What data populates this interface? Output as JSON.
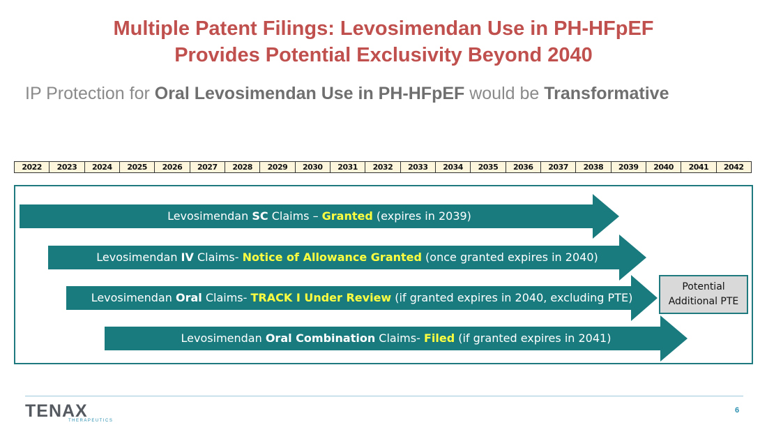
{
  "title_line1": "Multiple Patent Filings:  Levosimendan Use in PH-HFpEF",
  "title_line2": "Provides Potential  Exclusivity Beyond 2040",
  "subtitle": {
    "p1": "IP Protection for ",
    "b1": "Oral Levosimendan Use in PH-HFpEF",
    "p2": " would be ",
    "b2": "Transformative"
  },
  "years": [
    "2022",
    "2023",
    "2024",
    "2025",
    "2026",
    "2027",
    "2028",
    "2029",
    "2030",
    "2031",
    "2032",
    "2033",
    "2034",
    "2035",
    "2036",
    "2037",
    "2038",
    "2039",
    "2040",
    "2041",
    "2042"
  ],
  "arrows": [
    {
      "pre": "Levosimendan ",
      "bold": "SC",
      "mid": " Claims – ",
      "status": "Granted",
      "post": " (expires in 2039)"
    },
    {
      "pre": "Levosimendan ",
      "bold": "IV",
      "mid": " Claims- ",
      "status": "Notice of Allowance Granted",
      "post": " (once granted expires in 2040)"
    },
    {
      "pre": "Levosimendan ",
      "bold": "Oral",
      "mid": " Claims- ",
      "status": "TRACK I Under Review",
      "post": " (if granted expires in 2040, excluding PTE)"
    },
    {
      "pre": "Levosimendan ",
      "bold": "Oral Combination",
      "mid": " Claims- ",
      "status": "Filed",
      "post": " (if granted expires in 2041)"
    }
  ],
  "pte_box": {
    "line1": "Potential",
    "line2": "Additional PTE"
  },
  "logo": {
    "word": "TENAX",
    "sub": "THERAPEUTICS"
  },
  "page_number": "6",
  "colors": {
    "title": "#c0504d",
    "arrow": "#1a7b7f",
    "highlight": "#ffff40",
    "frame": "#1f7a80"
  }
}
